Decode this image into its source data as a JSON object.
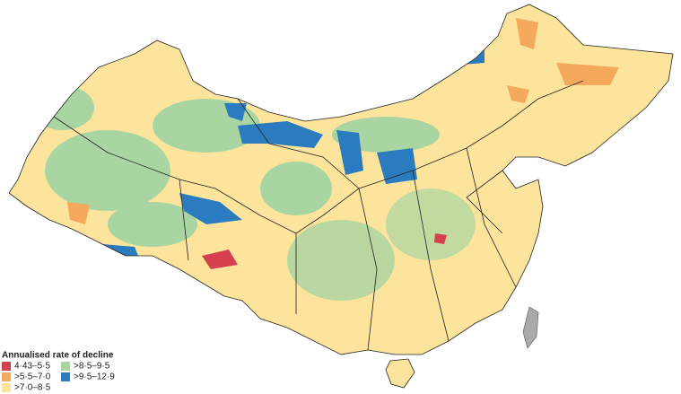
{
  "legend": {
    "title": "Annualised rate of decline",
    "items": [
      {
        "label": "4·43–5·5",
        "color": "#d6404e"
      },
      {
        "label": ">5·5–7·0",
        "color": "#f4a95c"
      },
      {
        "label": ">7·0–8·5",
        "color": "#fde49c"
      },
      {
        "label": ">8·5–9·5",
        "color": "#a8d5a2"
      },
      {
        "label": ">9·5–12·9",
        "color": "#2b7bbf"
      }
    ]
  }
}
